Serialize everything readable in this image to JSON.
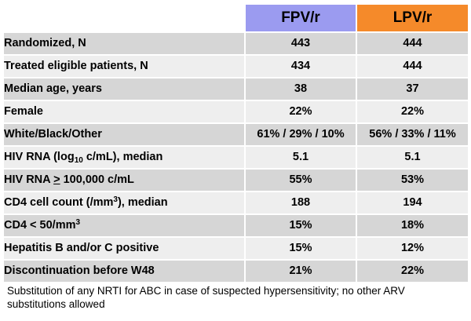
{
  "table": {
    "headers": {
      "fpv": "FPV/r",
      "lpv": "LPV/r"
    },
    "colors": {
      "fpv_header": "#9b9bf0",
      "lpv_header": "#f58a2a",
      "row_dark": "#d6d6d6",
      "row_light": "#eeeeee"
    },
    "rows": [
      {
        "label": "Randomized, N",
        "fpv": "443",
        "lpv": "444"
      },
      {
        "label": "Treated eligible patients, N",
        "fpv": "434",
        "lpv": "444"
      },
      {
        "label": "Median age, years",
        "fpv": "38",
        "lpv": "37"
      },
      {
        "label": "Female",
        "fpv": "22%",
        "lpv": "22%"
      },
      {
        "label": "White/Black/Other",
        "fpv": "61% / 29% / 10%",
        "lpv": "56% / 33% / 11%"
      },
      {
        "label_pre": "HIV RNA (log",
        "label_sub": "10",
        "label_post": " c/mL), median",
        "fpv": "5.1",
        "lpv": "5.1"
      },
      {
        "label_pre": "HIV RNA ",
        "label_underlined": ">",
        "label_post": " 100,000 c/mL",
        "fpv": "55%",
        "lpv": "53%"
      },
      {
        "label_pre": "CD4 cell count (/mm",
        "label_sup": "3",
        "label_post": "), median",
        "fpv": "188",
        "lpv": "194"
      },
      {
        "label_pre": "CD4 < 50/mm",
        "label_sup": "3",
        "fpv": "15%",
        "lpv": "18%"
      },
      {
        "label": "Hepatitis B and/or C positive",
        "fpv": "15%",
        "lpv": "12%"
      },
      {
        "label": "Discontinuation before W48",
        "fpv": "21%",
        "lpv": "22%"
      }
    ]
  },
  "footnote": "Substitution of any NRTI for ABC in case of suspected hypersensitivity; no other ARV substitutions allowed"
}
